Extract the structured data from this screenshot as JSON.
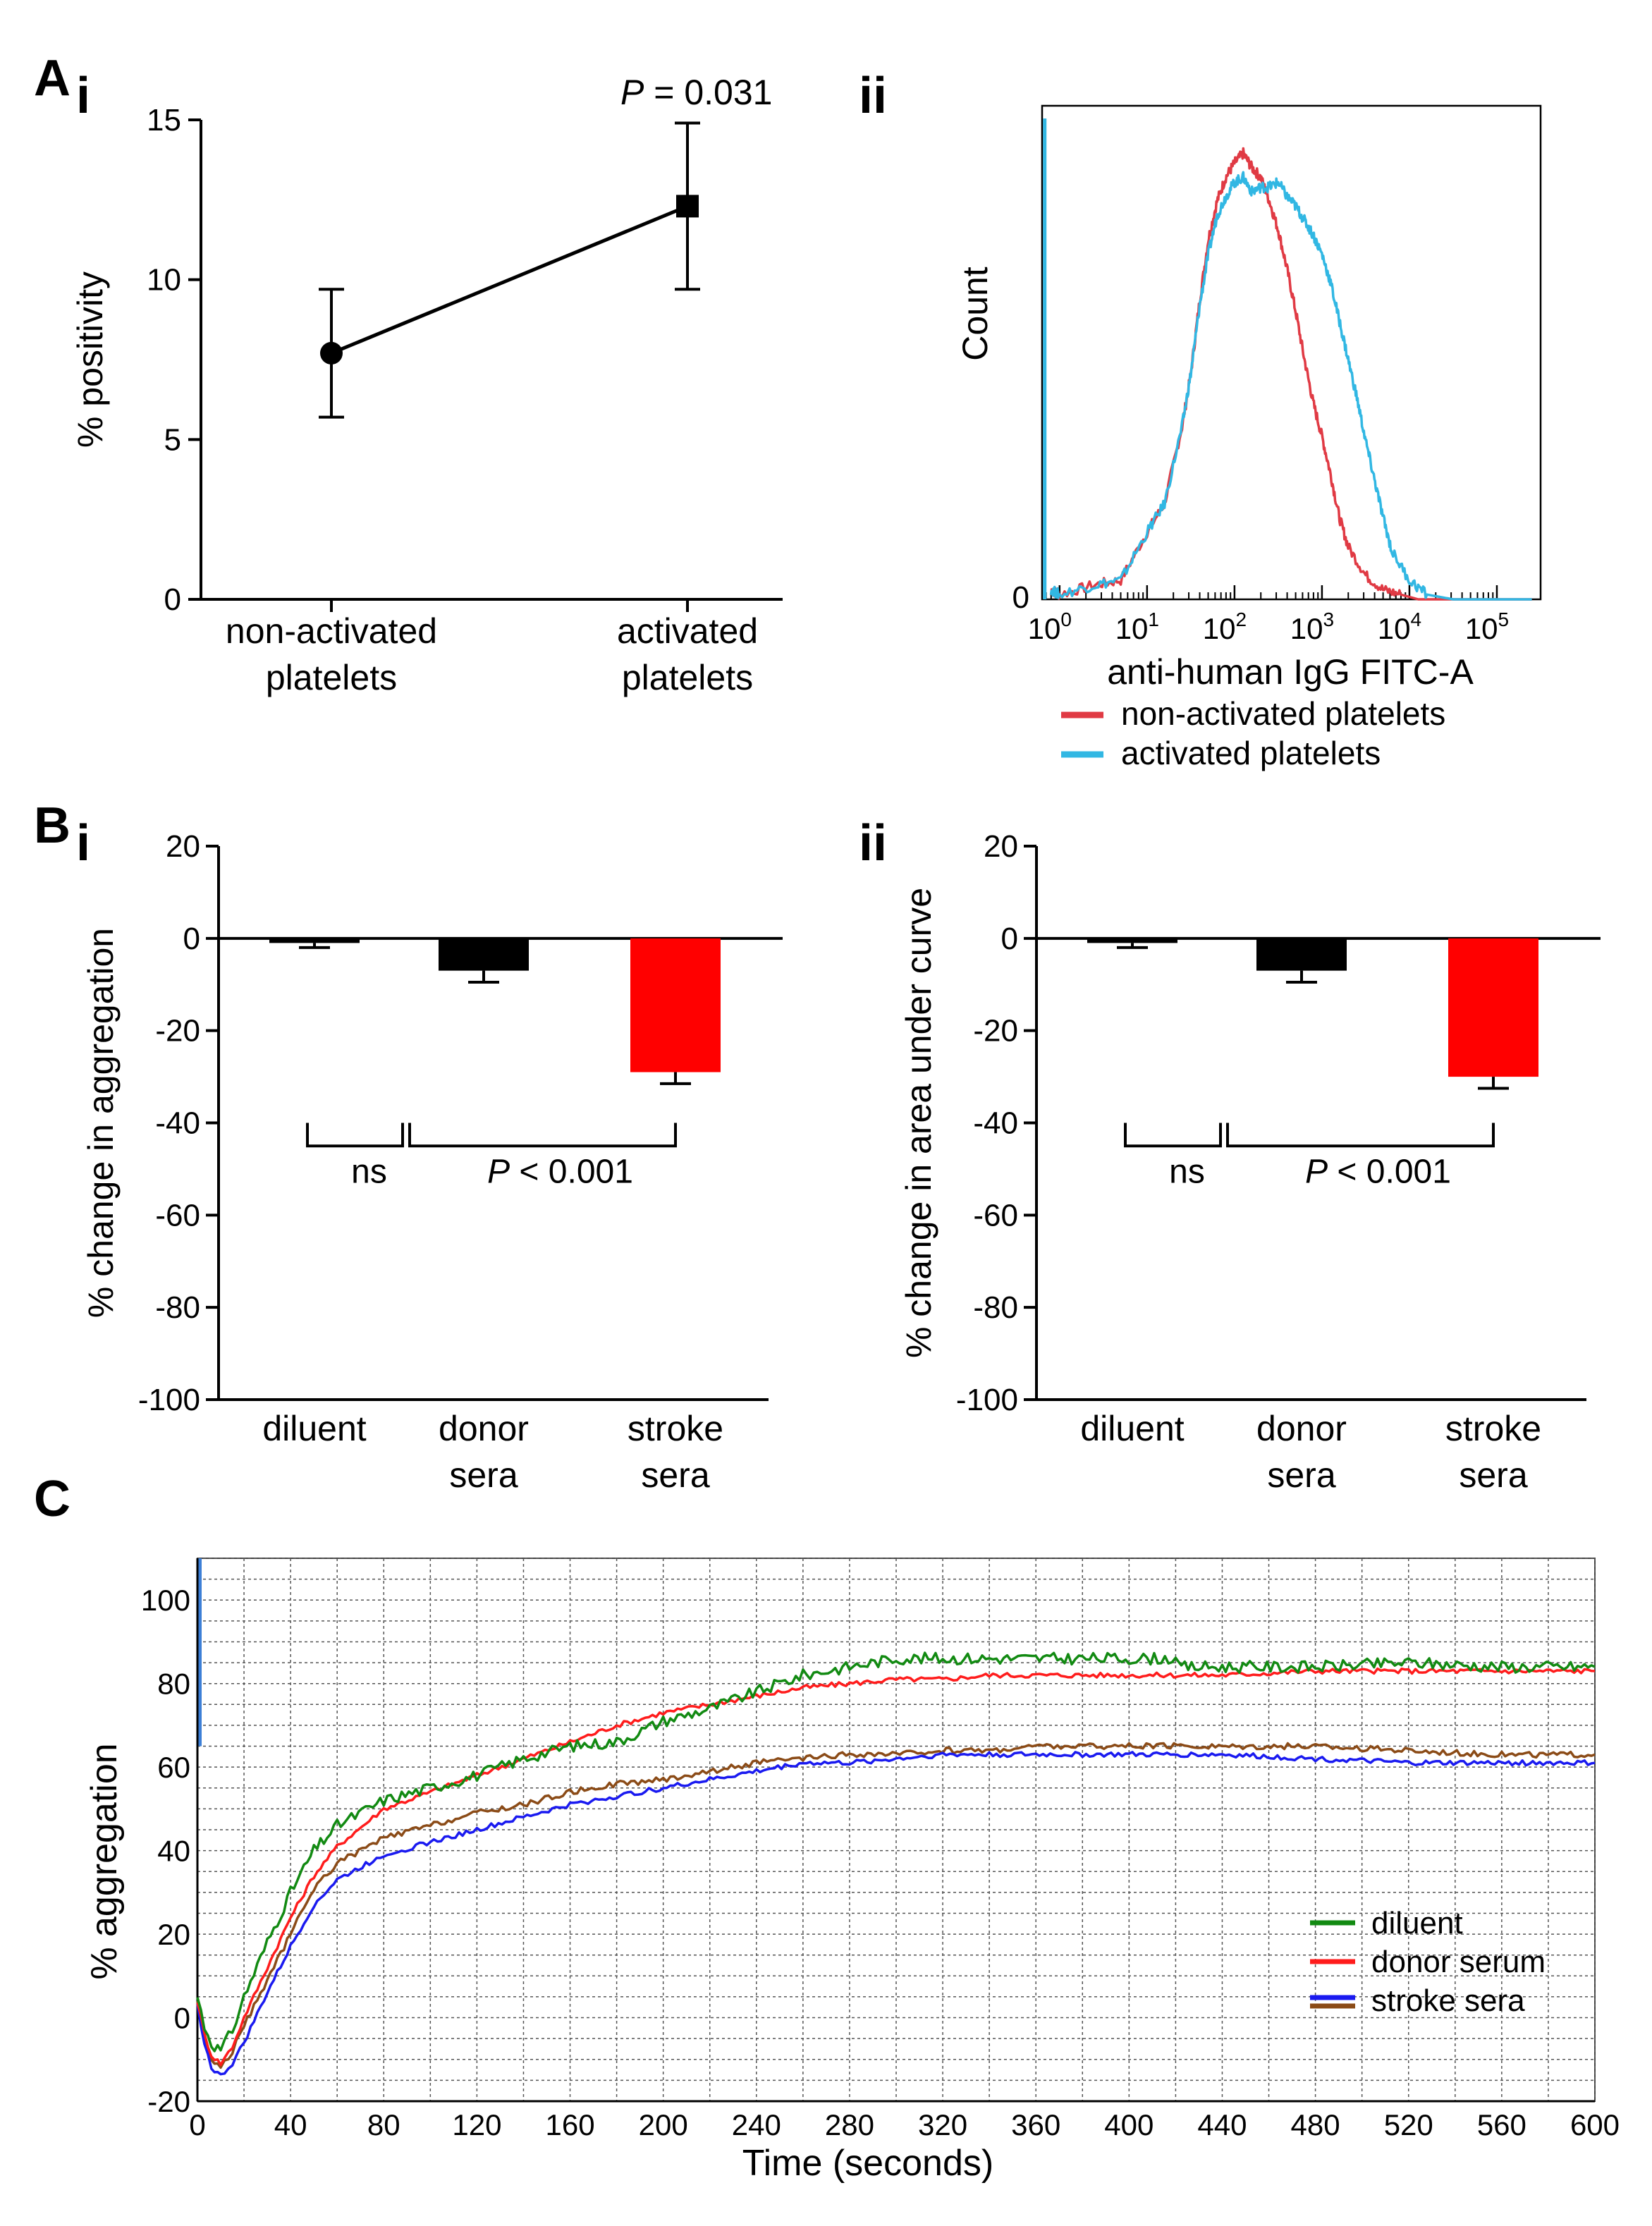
{
  "panels": {
    "A": "A",
    "A_i": "i",
    "A_ii": "ii",
    "B": "B",
    "B_i": "i",
    "B_ii": "ii",
    "C": "C"
  },
  "chart_data": [
    {
      "id": "Ai",
      "type": "line",
      "categories": [
        "non-activated\nplatelets",
        "activated\nplatelets"
      ],
      "category_lines": [
        [
          "non-activated",
          "platelets"
        ],
        [
          "activated",
          "platelets"
        ]
      ],
      "values": [
        7.7,
        12.3
      ],
      "error_low": [
        5.7,
        9.7
      ],
      "error_high": [
        9.7,
        14.9
      ],
      "markers": [
        "circle",
        "square"
      ],
      "ylabel": "% positivity",
      "ylim": [
        0,
        15
      ],
      "yticks": [
        0,
        5,
        10,
        15
      ],
      "annotation": {
        "p_letter": "P",
        "p_rest": " = 0.031"
      }
    },
    {
      "id": "Aii",
      "type": "area",
      "ylabel": "Count",
      "xlabel": "anti-human IgG FITC-A",
      "x_scale": "log",
      "xlim_log10": [
        -0.2,
        5.5
      ],
      "xticks_base": "10",
      "xticks_exp": [
        "0",
        "1",
        "2",
        "3",
        "4",
        "5"
      ],
      "y_tick": "0",
      "ylim": [
        0,
        100
      ],
      "series": [
        {
          "name": "non-activated platelets",
          "color": "#e03a44",
          "x_log10": [
            -0.1,
            0.0,
            0.4,
            0.7,
            1.0,
            1.2,
            1.4,
            1.5,
            1.6,
            1.7,
            1.8,
            1.9,
            2.0,
            2.1,
            2.2,
            2.3,
            2.4,
            2.5,
            2.6,
            2.7,
            2.8,
            2.9,
            3.0,
            3.1,
            3.2,
            3.3,
            3.5,
            3.7,
            3.9,
            4.1,
            4.3,
            5.4
          ],
          "y": [
            2,
            1,
            3,
            4,
            14,
            20,
            36,
            47,
            62,
            75,
            83,
            88,
            91,
            93,
            90,
            88,
            83,
            77,
            69,
            60,
            50,
            41,
            34,
            26,
            17,
            11,
            5,
            2,
            1,
            0,
            0,
            0
          ]
        },
        {
          "name": "activated platelets",
          "color": "#31b7e3",
          "x_log10": [
            -0.1,
            0.0,
            0.4,
            0.7,
            1.0,
            1.2,
            1.4,
            1.5,
            1.6,
            1.7,
            1.8,
            1.9,
            2.0,
            2.1,
            2.2,
            2.3,
            2.4,
            2.5,
            2.6,
            2.7,
            2.8,
            2.9,
            3.0,
            3.1,
            3.2,
            3.3,
            3.4,
            3.5,
            3.6,
            3.7,
            3.8,
            4.0,
            4.2,
            4.5,
            5.4
          ],
          "y": [
            2,
            1,
            3,
            4,
            14,
            20,
            36,
            47,
            61,
            72,
            80,
            84,
            87,
            88,
            85,
            86,
            86,
            87,
            84,
            82,
            79,
            76,
            72,
            66,
            58,
            50,
            42,
            33,
            25,
            17,
            10,
            4,
            1,
            0,
            0
          ]
        }
      ],
      "spike_color": "#31b7e3",
      "spike_x_log10": -0.17
    },
    {
      "id": "Bi",
      "type": "bar",
      "categories": [
        "diluent",
        "donor\nsera",
        "stroke\nsera"
      ],
      "category_lines": [
        [
          "diluent"
        ],
        [
          "donor",
          "sera"
        ],
        [
          "stroke",
          "sera"
        ]
      ],
      "values": [
        -1,
        -7,
        -29
      ],
      "error": [
        1,
        2.5,
        2.5
      ],
      "colors": [
        "#000000",
        "#000000",
        "#ff0000"
      ],
      "ylabel": "% change in aggregation",
      "ylim": [
        -100,
        20
      ],
      "yticks": [
        -100,
        -80,
        -60,
        -40,
        -20,
        0,
        20
      ],
      "brackets": [
        {
          "from": 0,
          "to": 1,
          "label": "ns"
        },
        {
          "from": 1,
          "to": 2,
          "label": "P < 0.001"
        }
      ],
      "p_letter": "P",
      "p_rest": " < 0.001"
    },
    {
      "id": "Bii",
      "type": "bar",
      "categories": [
        "diluent",
        "donor\nsera",
        "stroke\nsera"
      ],
      "category_lines": [
        [
          "diluent"
        ],
        [
          "donor",
          "sera"
        ],
        [
          "stroke",
          "sera"
        ]
      ],
      "values": [
        -1,
        -7,
        -30
      ],
      "error": [
        1,
        2.5,
        2.5
      ],
      "colors": [
        "#000000",
        "#000000",
        "#ff0000"
      ],
      "ylabel": "% change in area under curve",
      "ylim": [
        -100,
        20
      ],
      "yticks": [
        -100,
        -80,
        -60,
        -40,
        -20,
        0,
        20
      ],
      "brackets": [
        {
          "from": 0,
          "to": 1,
          "label": "ns"
        },
        {
          "from": 1,
          "to": 2,
          "label": "P < 0.001"
        }
      ],
      "p_letter": "P",
      "p_rest": " < 0.001"
    },
    {
      "id": "C",
      "type": "line",
      "xlabel": "Time (seconds)",
      "ylabel": "% aggregation",
      "xlim": [
        0,
        600
      ],
      "ylim": [
        -20,
        110
      ],
      "xticks": [
        0,
        40,
        80,
        120,
        160,
        200,
        240,
        280,
        320,
        360,
        400,
        440,
        480,
        520,
        560,
        600
      ],
      "yticks": [
        -20,
        0,
        20,
        40,
        60,
        80,
        100
      ],
      "grid": true,
      "legend_position": "bottom-right",
      "series": [
        {
          "name": "diluent",
          "color": "#128a12",
          "x": [
            0,
            3,
            6,
            10,
            15,
            20,
            30,
            40,
            50,
            60,
            80,
            100,
            120,
            140,
            160,
            180,
            200,
            220,
            240,
            260,
            280,
            300,
            320,
            340,
            360,
            380,
            400,
            420,
            421,
            440,
            480,
            520,
            560,
            600
          ],
          "y": [
            5,
            -2,
            -6,
            -8,
            -3,
            5,
            18,
            30,
            40,
            46,
            52,
            55,
            58,
            62,
            65,
            66,
            71,
            74,
            78,
            82,
            84,
            86,
            86,
            86,
            86,
            86,
            86,
            86,
            84,
            84,
            84,
            85,
            84,
            84
          ]
        },
        {
          "name": "donor serum",
          "color": "#ff1c1c",
          "x": [
            0,
            3,
            6,
            10,
            15,
            20,
            30,
            40,
            50,
            60,
            80,
            100,
            120,
            140,
            160,
            180,
            200,
            220,
            240,
            260,
            280,
            300,
            320,
            340,
            360,
            380,
            400,
            440,
            480,
            520,
            560,
            600
          ],
          "y": [
            4,
            -4,
            -9,
            -11,
            -7,
            0,
            12,
            24,
            34,
            41,
            50,
            54,
            58,
            62,
            66,
            70,
            73,
            75,
            77,
            79,
            80,
            81,
            81,
            82,
            82,
            82,
            82,
            82,
            83,
            83,
            83,
            83
          ]
        },
        {
          "name": "stroke sera",
          "color": "#1a1af0",
          "x": [
            0,
            3,
            6,
            10,
            15,
            20,
            30,
            40,
            50,
            60,
            80,
            100,
            120,
            140,
            160,
            180,
            200,
            220,
            240,
            260,
            280,
            300,
            320,
            340,
            360,
            380,
            400,
            440,
            480,
            520,
            560,
            600
          ],
          "y": [
            3,
            -6,
            -12,
            -14,
            -11,
            -6,
            6,
            17,
            27,
            33,
            39,
            42,
            45,
            48,
            51,
            53,
            55,
            57,
            59,
            61,
            61,
            62,
            63,
            63,
            63,
            63,
            63,
            63,
            62,
            61,
            61,
            61
          ]
        },
        {
          "name": "",
          "color": "#8b4b17",
          "x": [
            0,
            3,
            6,
            10,
            15,
            20,
            30,
            40,
            50,
            60,
            80,
            100,
            120,
            140,
            160,
            180,
            200,
            220,
            240,
            260,
            280,
            300,
            320,
            340,
            360,
            380,
            400,
            440,
            480,
            520,
            560,
            600
          ],
          "y": [
            4,
            -5,
            -10,
            -12,
            -8,
            -2,
            9,
            20,
            31,
            37,
            43,
            46,
            49,
            51,
            54,
            56,
            57,
            59,
            61,
            62,
            63,
            63,
            64,
            64,
            65,
            65,
            65,
            65,
            65,
            64,
            63,
            63
          ]
        }
      ],
      "legend": [
        "diluent",
        "donor serum",
        "stroke sera"
      ]
    }
  ]
}
